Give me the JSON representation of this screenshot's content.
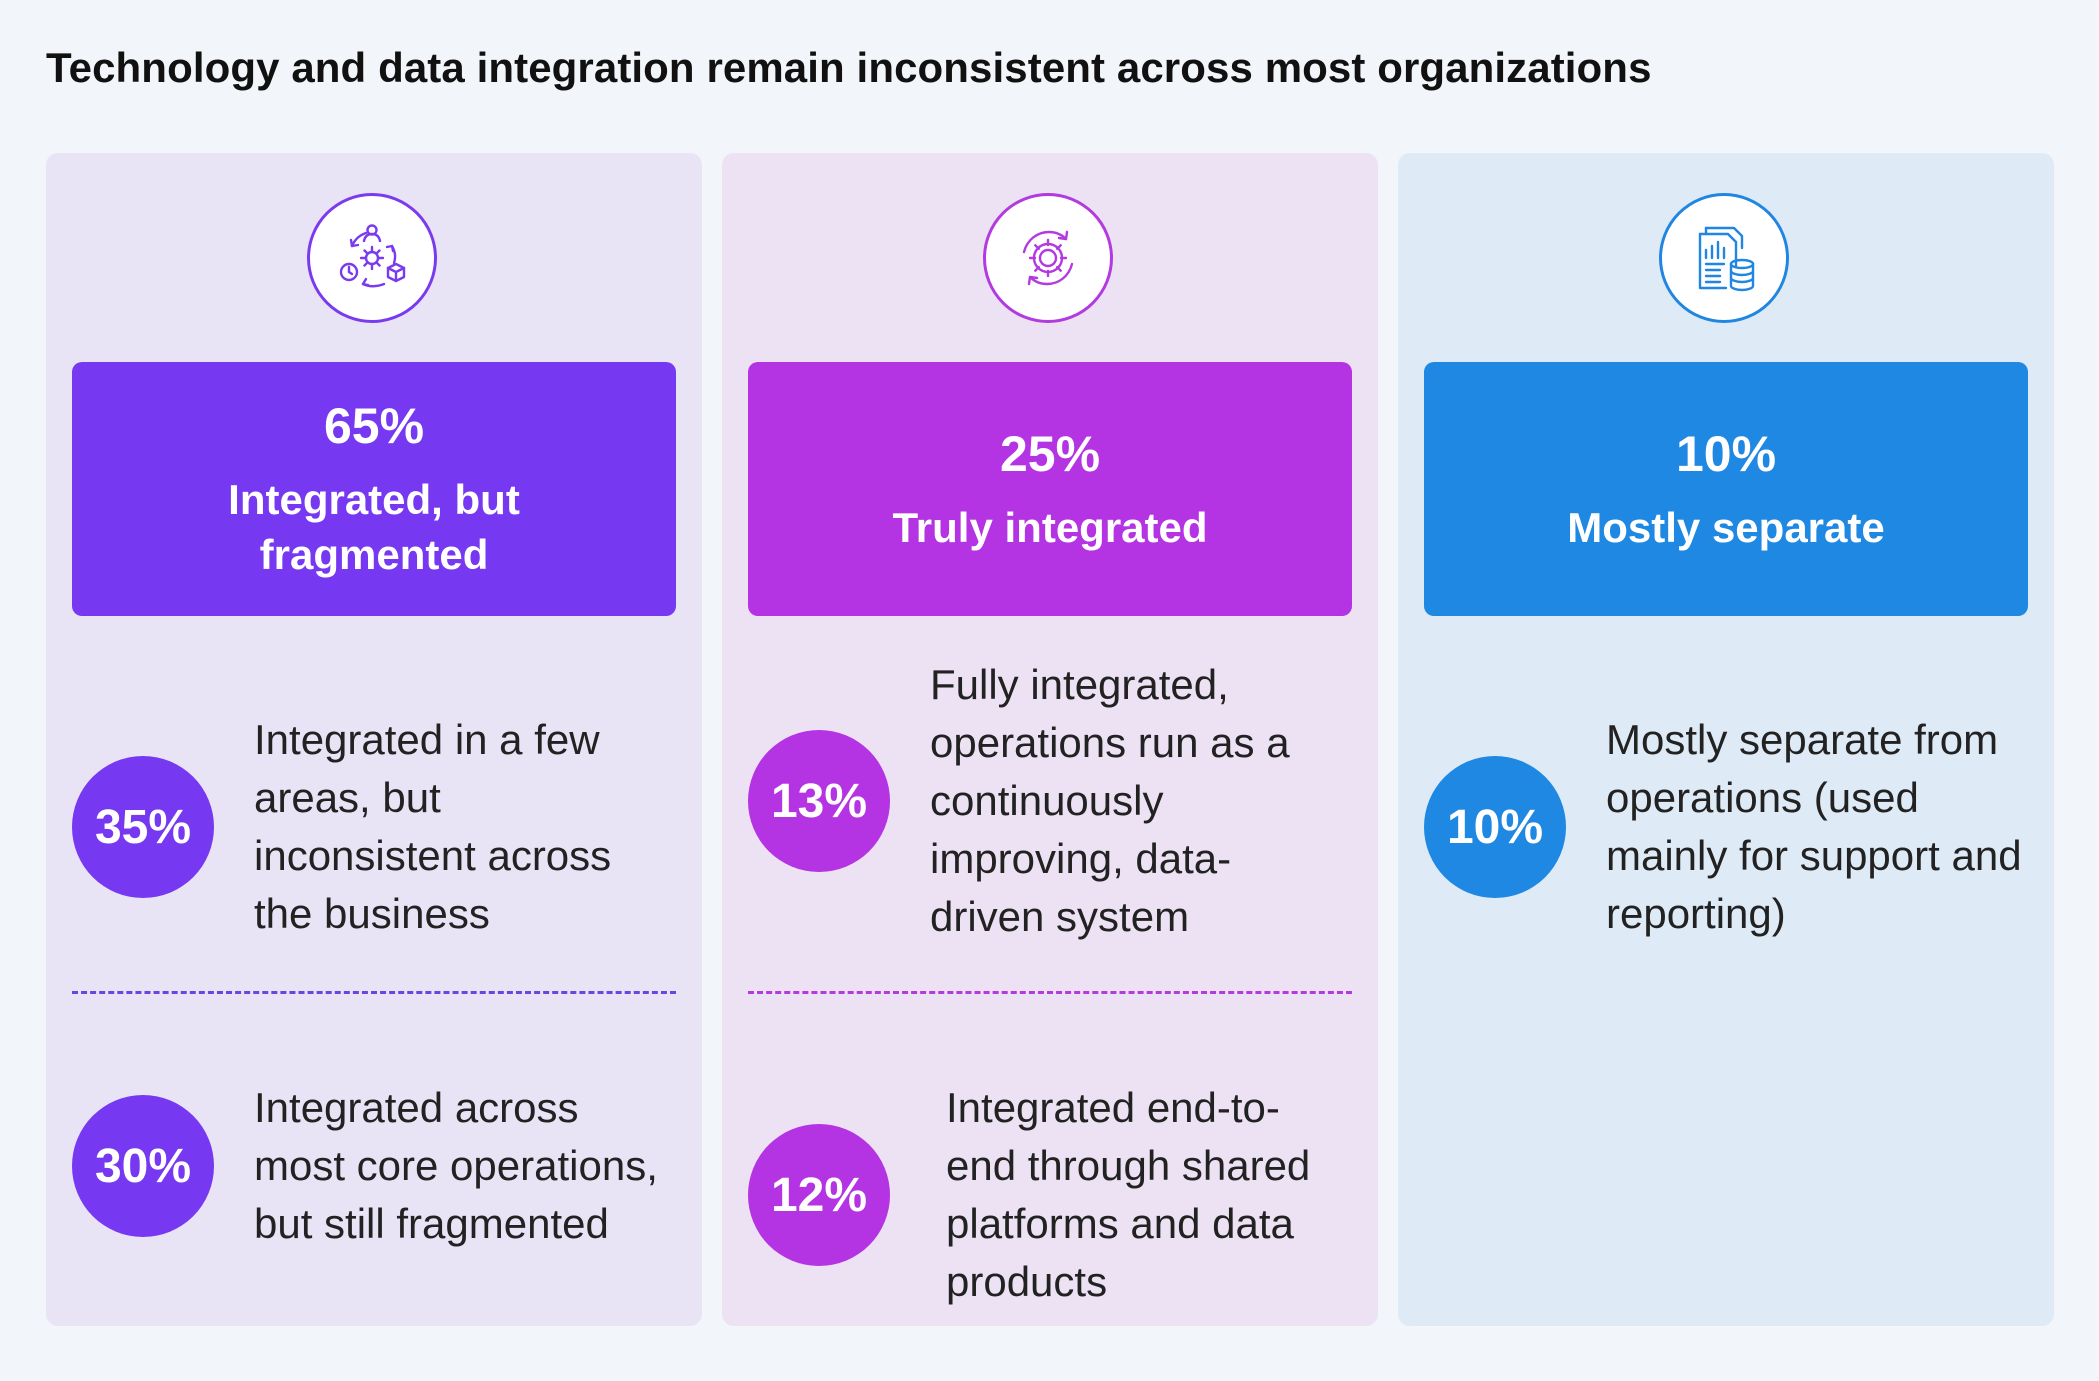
{
  "title": "Technology and data integration remain inconsistent across most organizations",
  "colors": {
    "page_background": "#f2f5f9",
    "purple": "#7638f1",
    "magenta": "#b433e2",
    "blue": "#1e88e2"
  },
  "columns": [
    {
      "icon": "gears-cycle-icon",
      "header": {
        "percent": "65%",
        "label": "Integrated, but fragmented"
      },
      "items": [
        {
          "percent": "35%",
          "text": "Integrated in a few areas, but inconsistent across the business"
        },
        {
          "percent": "30%",
          "text": "Integrated across most core operations, but still fragmented"
        }
      ]
    },
    {
      "icon": "gear-refresh-icon",
      "header": {
        "percent": "25%",
        "label": "Truly integrated"
      },
      "items": [
        {
          "percent": "13%",
          "text": "Fully integrated, operations run as a continuously improving, data-driven system"
        },
        {
          "percent": "12%",
          "text": "Integrated end-to-end through shared platforms and data products"
        }
      ]
    },
    {
      "icon": "document-database-icon",
      "header": {
        "percent": "10%",
        "label": "Mostly separate"
      },
      "items": [
        {
          "percent": "10%",
          "text": "Mostly separate from operations (used mainly for support and reporting)"
        }
      ]
    }
  ]
}
